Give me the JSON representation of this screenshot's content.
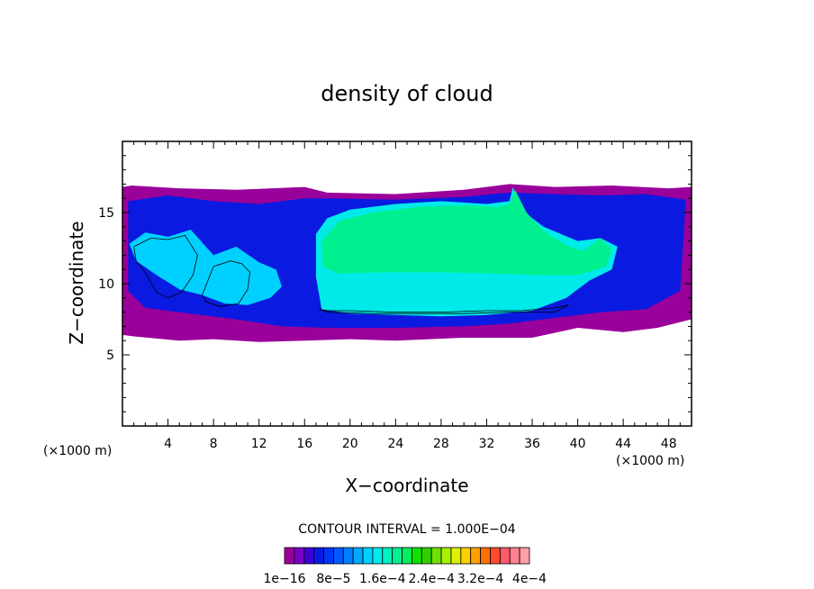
{
  "chart_data": {
    "type": "heatmap",
    "title": "density of cloud",
    "xlabel": "X−coordinate",
    "ylabel": "Z−coordinate",
    "x_unit": "(×1000 m)",
    "y_unit": "(×1000 m)",
    "xlim": [
      0,
      50
    ],
    "ylim": [
      0,
      20
    ],
    "x_ticks": [
      4,
      8,
      12,
      16,
      20,
      24,
      28,
      32,
      36,
      40,
      44,
      48
    ],
    "y_ticks": [
      5,
      10,
      15
    ],
    "contour_interval_text": "CONTOUR INTERVAL = 1.000E−04",
    "colorbar": {
      "colors": [
        "#9a009a",
        "#7a00c8",
        "#3c00d6",
        "#0a1ae0",
        "#0037f5",
        "#005aff",
        "#0080ff",
        "#00a8ff",
        "#00d0ff",
        "#00eaea",
        "#00f0c0",
        "#00f090",
        "#00f060",
        "#10e000",
        "#30d000",
        "#70e000",
        "#a8f000",
        "#e0f000",
        "#ffd000",
        "#ffa000",
        "#ff7000",
        "#ff4a30",
        "#ff5a6a",
        "#ff8090",
        "#ffa0a8"
      ],
      "tick_labels": [
        "1e−16",
        "8e−5",
        "1.6e−4",
        "2.4e−4",
        "3.2e−4",
        "4e−4"
      ]
    },
    "regions": [
      {
        "level": "low",
        "color": "#9a009a",
        "x": [
          0.0,
          0.8,
          5,
          10,
          16,
          18,
          24,
          30,
          34,
          38,
          43,
          48,
          50,
          50,
          47,
          44,
          40,
          36,
          30,
          24,
          20,
          16,
          12,
          8,
          5,
          1,
          0
        ],
        "y": [
          16.8,
          16.9,
          16.7,
          16.6,
          16.8,
          16.4,
          16.3,
          16.6,
          17.0,
          16.8,
          16.9,
          16.7,
          16.8,
          7.5,
          6.9,
          6.6,
          6.9,
          6.2,
          6.2,
          6.0,
          6.1,
          6.0,
          5.9,
          6.1,
          6.0,
          6.3,
          6.4
        ]
      },
      {
        "level": "mid",
        "color": "#0a1ae0",
        "x": [
          0.5,
          4,
          8,
          12,
          16,
          18,
          24,
          30,
          34,
          38,
          42,
          46,
          49.5,
          49,
          46,
          42,
          38,
          34,
          30,
          24,
          18,
          14,
          10,
          6,
          2,
          0.5
        ],
        "y": [
          15.8,
          16.2,
          15.8,
          15.6,
          16.0,
          16.0,
          15.9,
          16.1,
          16.4,
          16.3,
          16.2,
          16.3,
          15.9,
          9.5,
          8.2,
          8.0,
          7.6,
          7.2,
          7.0,
          6.9,
          6.9,
          7.0,
          7.5,
          7.9,
          8.3,
          9.5
        ]
      },
      {
        "level": "mid-high",
        "color": "#00d0ff",
        "x": [
          0.6,
          2,
          4,
          6,
          8,
          10,
          12,
          13.5,
          14,
          13,
          11,
          9,
          7,
          5,
          3,
          1.2,
          0.6
        ],
        "y": [
          12.8,
          13.6,
          13.3,
          13.8,
          12.0,
          12.6,
          11.5,
          11.0,
          9.8,
          9.0,
          8.5,
          8.6,
          9.2,
          9.6,
          10.6,
          11.6,
          12.8
        ]
      },
      {
        "level": "mid-high",
        "color": "#00eaea",
        "x": [
          17,
          18,
          20,
          24,
          28,
          30,
          32,
          34,
          34.3,
          35,
          37,
          40,
          42,
          43.5,
          43,
          41,
          39,
          36,
          32,
          28,
          24,
          20,
          17.5,
          17
        ],
        "y": [
          13.5,
          14.6,
          15.2,
          15.6,
          15.8,
          15.7,
          15.6,
          15.8,
          16.8,
          15.2,
          14.0,
          13.0,
          13.2,
          12.6,
          11.0,
          10.2,
          9.0,
          8.1,
          7.8,
          7.7,
          7.8,
          7.9,
          8.2,
          10.5
        ]
      },
      {
        "level": "high",
        "color": "#00f090",
        "x": [
          17.5,
          19,
          22,
          26,
          30,
          33,
          34,
          34.5,
          35.5,
          37,
          39,
          40.5,
          42,
          43,
          42.5,
          40,
          37,
          33,
          28,
          23,
          19,
          17.6
        ],
        "y": [
          13.0,
          14.4,
          15.0,
          15.4,
          15.5,
          15.4,
          15.6,
          16.6,
          15.0,
          13.7,
          12.7,
          12.3,
          13.2,
          12.4,
          11.2,
          10.6,
          10.6,
          10.7,
          10.8,
          10.8,
          10.7,
          11.2
        ]
      }
    ],
    "contours": [
      {
        "x": [
          17.3,
          18,
          20,
          24,
          28,
          32,
          35,
          38,
          39.2,
          38,
          34,
          30,
          26,
          22,
          18,
          17.3
        ],
        "y": [
          8.2,
          8.1,
          8.1,
          8.0,
          8.0,
          8.1,
          8.1,
          8.3,
          8.5,
          8.0,
          8.0,
          7.9,
          7.9,
          7.9,
          8.0,
          8.2
        ]
      },
      {
        "x": [
          1,
          2.5,
          4,
          5.5,
          6.6,
          6.2,
          5.2,
          4,
          3,
          2,
          1.2,
          1
        ],
        "y": [
          12.6,
          13.2,
          13.1,
          13.4,
          12.0,
          10.6,
          9.4,
          9.0,
          9.4,
          10.8,
          11.6,
          12.6
        ]
      },
      {
        "x": [
          7.0,
          8.0,
          9.5,
          10.5,
          11.2,
          11.0,
          10.2,
          8.6,
          7.4,
          7.0
        ],
        "y": [
          9.2,
          11.2,
          11.6,
          11.4,
          10.8,
          9.6,
          8.6,
          8.4,
          8.7,
          9.2
        ]
      }
    ]
  }
}
